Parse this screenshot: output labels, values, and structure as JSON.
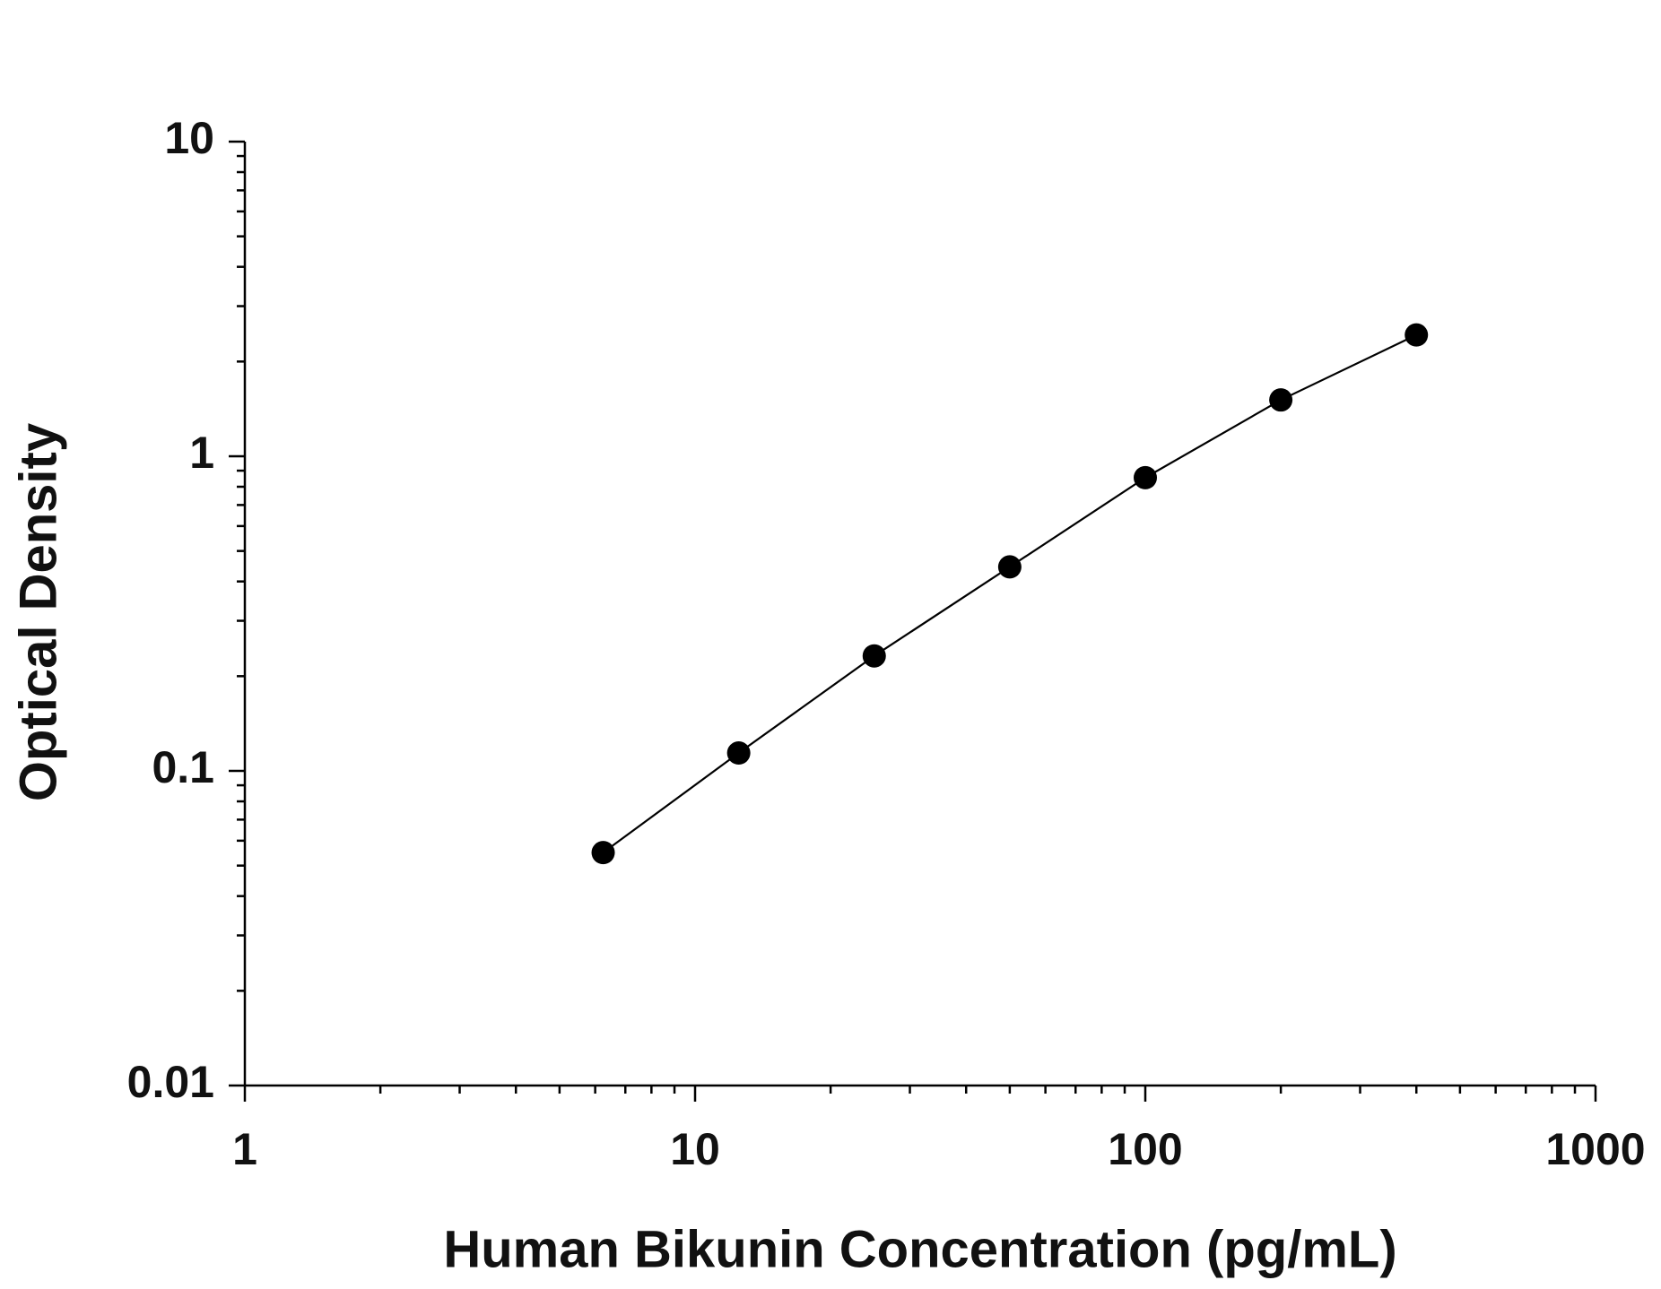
{
  "chart_data": {
    "type": "scatter",
    "xlabel": "Human Bikunin Concentration (pg/mL)",
    "ylabel": "Optical Density",
    "x": [
      6.25,
      12.5,
      25,
      50,
      100,
      200,
      400
    ],
    "series": [
      {
        "color": "#000000",
        "values": [
          0.055,
          0.114,
          0.232,
          0.445,
          0.855,
          1.51,
          2.43
        ]
      }
    ],
    "connect": true,
    "xlog": true,
    "ylog": true,
    "xlim": [
      1,
      1000
    ],
    "ylim": [
      0.01,
      10
    ],
    "xticks": [
      1,
      10,
      100,
      1000
    ],
    "yticks": [
      0.01,
      0.1,
      1,
      10
    ]
  }
}
